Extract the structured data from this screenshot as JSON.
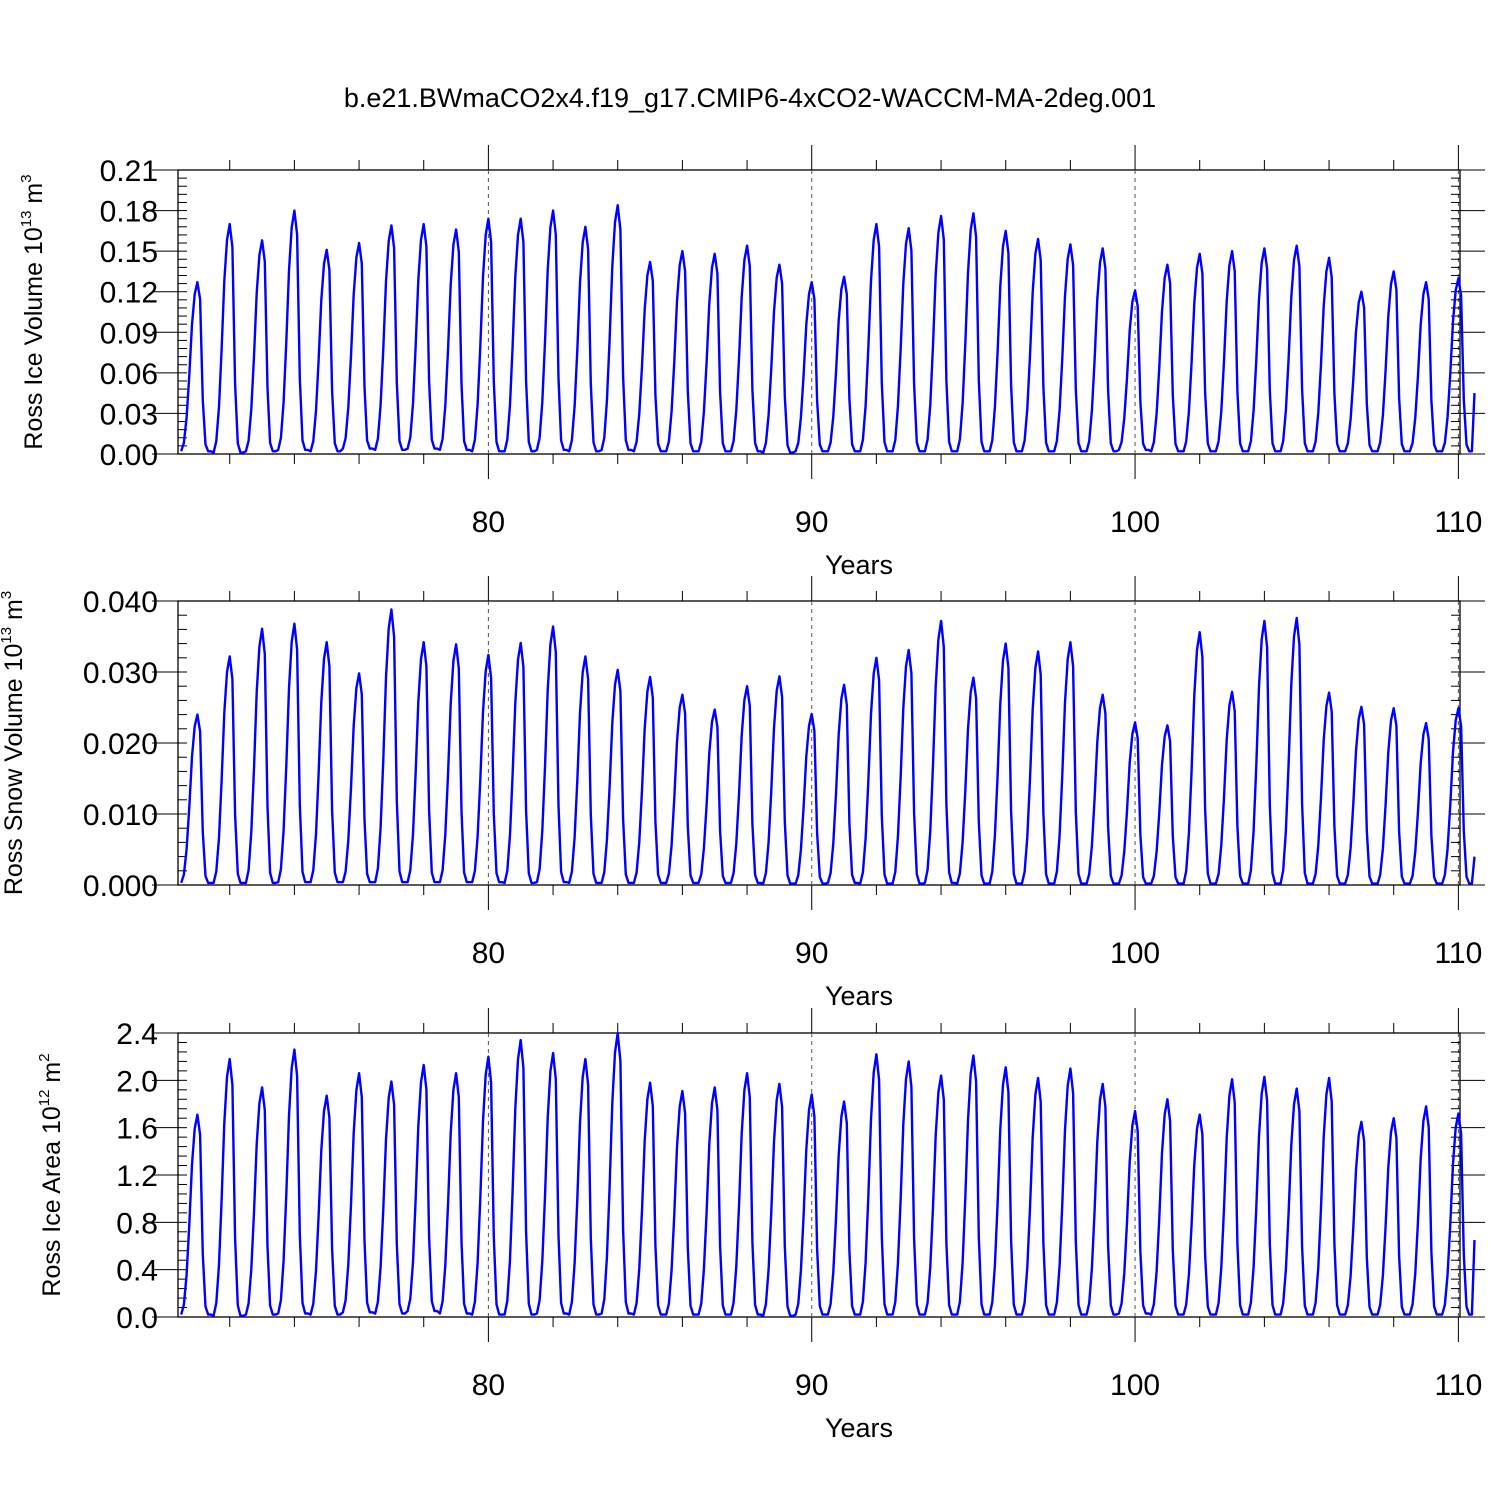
{
  "figure": {
    "title": "b.e21.BWmaCO2x4.f19_g17.CMIP6-4xCO2-WACCM-MA-2deg.001",
    "line_color": "#0000ff"
  },
  "chart_data": [
    {
      "type": "line",
      "ylabel": "Ross Ice Volume 10",
      "ylabel_exp": "13",
      "ylabel_unit": " m",
      "ylabel_unit_exp": "3",
      "xlabel": "Years",
      "xlim": [
        70.4,
        110.05
      ],
      "ylim": [
        0,
        0.21
      ],
      "x_ticks": [
        80,
        90,
        100,
        110
      ],
      "x_tick_labels": [
        "80",
        "90",
        "100",
        "110"
      ],
      "y_ticks": [
        0,
        0.03,
        0.06,
        0.09,
        0.12,
        0.15,
        0.18,
        0.21
      ],
      "y_tick_labels": [
        "0.00",
        "0.03",
        "0.06",
        "0.09",
        "0.12",
        "0.15",
        "0.18",
        "0.21"
      ],
      "y_minor_step": 0.006,
      "series": [
        {
          "name": "Ross Ice Volume",
          "start_year": 70.5,
          "annual_peaks": [
            0.127,
            0.17,
            0.158,
            0.18,
            0.151,
            0.156,
            0.169,
            0.17,
            0.166,
            0.174,
            0.174,
            0.18,
            0.168,
            0.184,
            0.142,
            0.15,
            0.148,
            0.154,
            0.14,
            0.127,
            0.131,
            0.17,
            0.167,
            0.176,
            0.178,
            0.165,
            0.159,
            0.155,
            0.152,
            0.121,
            0.14,
            0.148,
            0.15,
            0.152,
            0.154,
            0.145,
            0.12,
            0.135,
            0.127,
            0.13
          ],
          "annual_minima": [
            0.002,
            0.001,
            0.002,
            0.003,
            0.002,
            0.004,
            0.003,
            0.004,
            0.003,
            0.002,
            0.002,
            0.003,
            0.002,
            0.003,
            0.002,
            0.002,
            0.002,
            0.002,
            0.001,
            0.002,
            0.002,
            0.002,
            0.002,
            0.002,
            0.002,
            0.002,
            0.002,
            0.002,
            0.002,
            0.003,
            0.002,
            0.002,
            0.002,
            0.002,
            0.002,
            0.002,
            0.002,
            0.002,
            0.002,
            0.002
          ],
          "end_value": 0.045
        }
      ]
    },
    {
      "type": "line",
      "ylabel": "Ross Snow Volume 10",
      "ylabel_exp": "13",
      "ylabel_unit": " m",
      "ylabel_unit_exp": "3",
      "xlabel": "Years",
      "xlim": [
        70.4,
        110.05
      ],
      "ylim": [
        0,
        0.04
      ],
      "x_ticks": [
        80,
        90,
        100,
        110
      ],
      "x_tick_labels": [
        "80",
        "90",
        "100",
        "110"
      ],
      "y_ticks": [
        0,
        0.01,
        0.02,
        0.03,
        0.04
      ],
      "y_tick_labels": [
        "0.000",
        "0.010",
        "0.020",
        "0.030",
        "0.040"
      ],
      "y_minor_step": 0.002,
      "series": [
        {
          "name": "Ross Snow Volume",
          "start_year": 70.5,
          "annual_peaks": [
            0.024,
            0.0322,
            0.0361,
            0.0368,
            0.0342,
            0.0298,
            0.0388,
            0.0342,
            0.0339,
            0.0324,
            0.0341,
            0.0364,
            0.0322,
            0.0303,
            0.0293,
            0.0268,
            0.0247,
            0.028,
            0.0294,
            0.0241,
            0.0282,
            0.032,
            0.0331,
            0.0372,
            0.0292,
            0.034,
            0.0329,
            0.0342,
            0.0268,
            0.0229,
            0.0225,
            0.0356,
            0.0272,
            0.0372,
            0.0376,
            0.0271,
            0.0251,
            0.0249,
            0.0228,
            0.0249
          ],
          "annual_minima": [
            0.0003,
            0.0003,
            0.0003,
            0.0004,
            0.0004,
            0.0004,
            0.0004,
            0.0004,
            0.0004,
            0.0004,
            0.0003,
            0.0004,
            0.0003,
            0.0003,
            0.0003,
            0.0003,
            0.0003,
            0.0003,
            0.0002,
            0.0002,
            0.0003,
            0.0002,
            0.0002,
            0.0003,
            0.0002,
            0.0002,
            0.0002,
            0.0002,
            0.0002,
            0.0002,
            0.0002,
            0.0002,
            0.0002,
            0.0002,
            0.0002,
            0.0002,
            0.0002,
            0.0002,
            0.0002,
            0.0002
          ],
          "end_value": 0.004
        }
      ]
    },
    {
      "type": "line",
      "ylabel": "Ross Ice Area 10",
      "ylabel_exp": "12",
      "ylabel_unit": " m",
      "ylabel_unit_exp": "2",
      "xlabel": "Years",
      "xlim": [
        70.4,
        110.05
      ],
      "ylim": [
        0,
        2.4
      ],
      "x_ticks": [
        80,
        90,
        100,
        110
      ],
      "x_tick_labels": [
        "80",
        "90",
        "100",
        "110"
      ],
      "y_ticks": [
        0,
        0.4,
        0.8,
        1.2,
        1.6,
        2.0,
        2.4
      ],
      "y_tick_labels": [
        "0.0",
        "0.4",
        "0.8",
        "1.2",
        "1.6",
        "2.0",
        "2.4"
      ],
      "y_minor_step": 0.08,
      "series": [
        {
          "name": "Ross Ice Area",
          "start_year": 70.5,
          "annual_peaks": [
            1.71,
            2.18,
            1.94,
            2.26,
            1.87,
            2.06,
            1.99,
            2.13,
            2.06,
            2.2,
            2.34,
            2.23,
            2.18,
            2.4,
            1.98,
            1.91,
            1.94,
            2.06,
            1.97,
            1.88,
            1.82,
            2.22,
            2.16,
            2.04,
            2.21,
            2.11,
            2.02,
            2.1,
            1.97,
            1.74,
            1.84,
            1.71,
            2.01,
            2.03,
            1.93,
            2.02,
            1.65,
            1.68,
            1.78,
            1.72
          ],
          "annual_minima": [
            0.02,
            0.01,
            0.02,
            0.03,
            0.02,
            0.04,
            0.03,
            0.05,
            0.03,
            0.02,
            0.02,
            0.03,
            0.02,
            0.03,
            0.02,
            0.02,
            0.02,
            0.02,
            0.01,
            0.02,
            0.02,
            0.02,
            0.02,
            0.02,
            0.02,
            0.02,
            0.02,
            0.02,
            0.02,
            0.03,
            0.02,
            0.02,
            0.02,
            0.02,
            0.02,
            0.02,
            0.02,
            0.02,
            0.02,
            0.02
          ],
          "end_value": 0.65
        }
      ]
    }
  ]
}
